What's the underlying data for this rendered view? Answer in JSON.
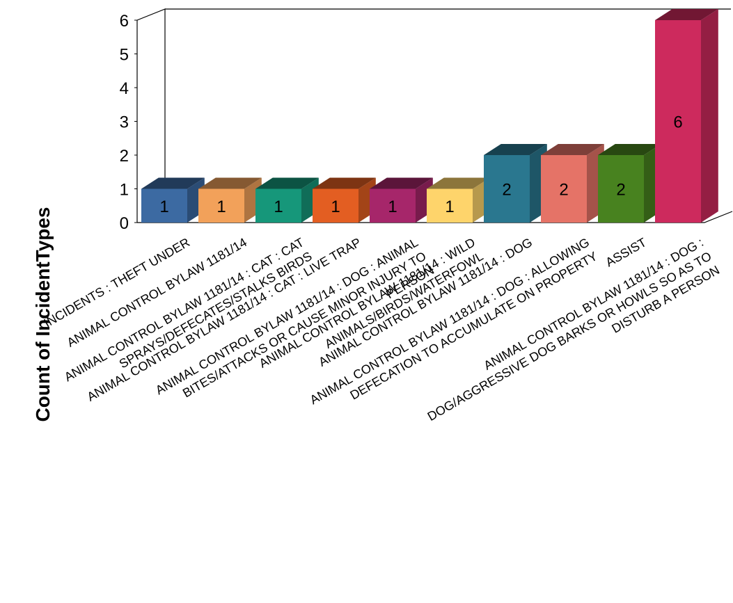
{
  "chart_data": {
    "type": "bar",
    "ylabel": "Count of IncidentTypes",
    "ylim": [
      0,
      6
    ],
    "yticks": [
      "0",
      "1",
      "2",
      "3",
      "4",
      "5",
      "6"
    ],
    "grid": false,
    "legend": "none",
    "three_d": true,
    "categories": [
      [
        "INCIDENTS : THEFT UNDER"
      ],
      [
        "ANIMAL CONTROL BYLAW 1181/14"
      ],
      [
        "ANIMAL CONTROL BYLAW 1181/14 : CAT : CAT",
        "SPRAYS/DEFECATES/STALKS BIRDS"
      ],
      [
        "ANIMAL CONTROL BYLAW 1181/14 : CAT : LIVE TRAP"
      ],
      [
        "ANIMAL CONTROL BYLAW 1181/14 : DOG : ANIMAL",
        "BITES/ATTACKS OR CAUSE MINOR INJURY TO",
        "PERSON"
      ],
      [
        "ANIMAL CONTROL BYLAW 1181/14 : WILD",
        "ANIMALS/BIRDS/WATERFOWL"
      ],
      [
        "ANIMAL CONTROL BYLAW 1181/14 : DOG"
      ],
      [
        "ANIMAL CONTROL BYLAW 1181/14 : DOG : ALLOWING",
        "DEFECATION TO ACCUMULATE ON PROPERTY"
      ],
      [
        "ASSIST"
      ],
      [
        "ANIMAL CONTROL BYLAW 1181/14 : DOG :",
        "DOG/AGGRESSIVE DOG BARKS OR HOWLS SO AS TO",
        "DISTURB A PERSON"
      ]
    ],
    "values": [
      1,
      1,
      1,
      1,
      1,
      1,
      2,
      2,
      2,
      6
    ],
    "data_labels": [
      "1",
      "1",
      "1",
      "1",
      "1",
      "1",
      "2",
      "2",
      "2",
      "6"
    ],
    "colors": [
      "#3c6aa2",
      "#f2a15a",
      "#16977a",
      "#e35e22",
      "#a6266a",
      "#fed46b",
      "#2a778f",
      "#e57367",
      "#48821f",
      "#cd2a5d"
    ]
  }
}
